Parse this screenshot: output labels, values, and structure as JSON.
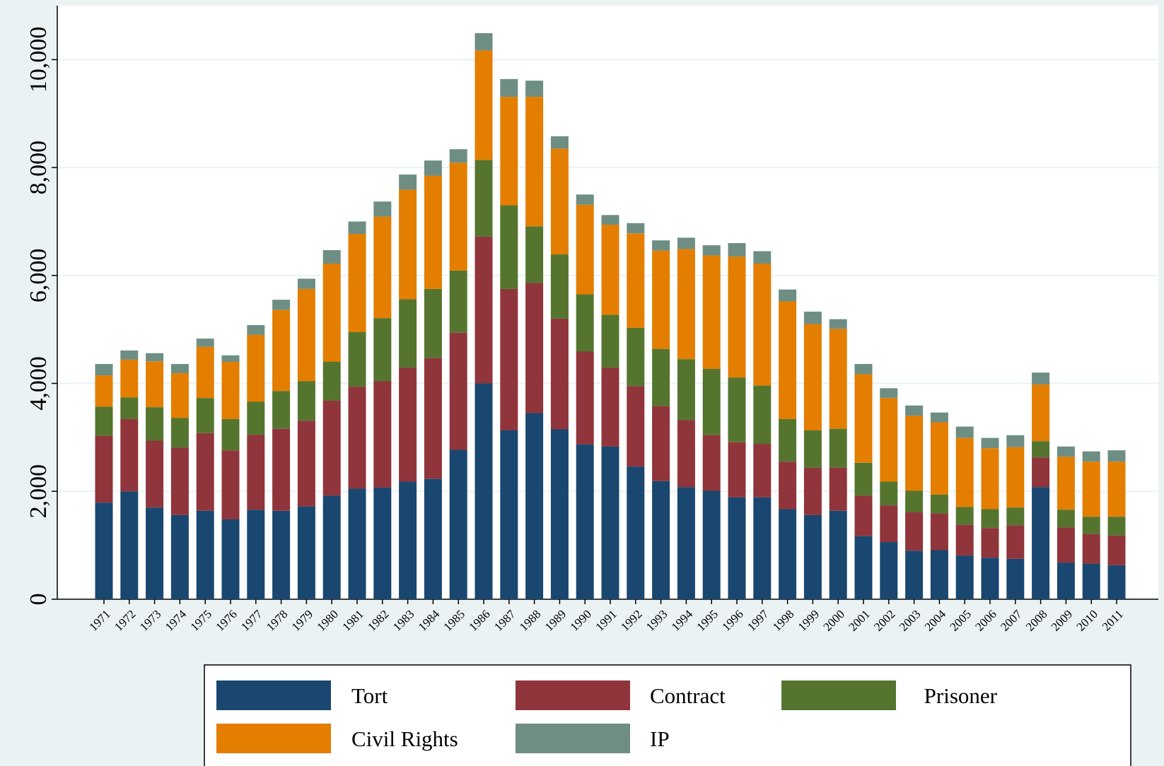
{
  "chart_data": {
    "type": "stacked_bar",
    "categories": [
      "1971",
      "1972",
      "1973",
      "1974",
      "1975",
      "1976",
      "1977",
      "1978",
      "1979",
      "1980",
      "1981",
      "1982",
      "1983",
      "1984",
      "1985",
      "1986",
      "1987",
      "1988",
      "1989",
      "1990",
      "1991",
      "1992",
      "1993",
      "1994",
      "1995",
      "1996",
      "1997",
      "1998",
      "1999",
      "2000",
      "2001",
      "2002",
      "2003",
      "2004",
      "2005",
      "2006",
      "2007",
      "2008",
      "2009",
      "2010",
      "2011"
    ],
    "series": [
      {
        "name": "Tort",
        "color": "#1a476f",
        "values": [
          1790,
          2000,
          1700,
          1560,
          1640,
          1480,
          1660,
          1640,
          1720,
          1920,
          2050,
          2070,
          2180,
          2230,
          2770,
          4000,
          3130,
          3450,
          3150,
          2870,
          2830,
          2460,
          2190,
          2080,
          2010,
          1890,
          1890,
          1670,
          1560,
          1640,
          1170,
          1060,
          900,
          910,
          810,
          770,
          750,
          2080,
          680,
          660,
          630
        ]
      },
      {
        "name": "Contract",
        "color": "#90353b",
        "values": [
          1240,
          1340,
          1240,
          1250,
          1440,
          1280,
          1390,
          1520,
          1590,
          1760,
          1890,
          1970,
          2110,
          2240,
          2170,
          2720,
          2620,
          2410,
          2050,
          1720,
          1460,
          1490,
          1390,
          1240,
          1030,
          1020,
          990,
          880,
          880,
          800,
          750,
          680,
          710,
          680,
          570,
          550,
          620,
          550,
          650,
          550,
          550
        ]
      },
      {
        "name": "Prisoner",
        "color": "#55752f",
        "values": [
          540,
          400,
          620,
          550,
          650,
          580,
          610,
          700,
          730,
          720,
          1010,
          1170,
          1270,
          1280,
          1150,
          1420,
          1550,
          1050,
          1190,
          1060,
          980,
          1080,
          1060,
          1130,
          1230,
          1200,
          1080,
          790,
          690,
          720,
          610,
          440,
          400,
          350,
          330,
          350,
          330,
          300,
          330,
          320,
          350
        ]
      },
      {
        "name": "Civil Rights",
        "color": "#e37e00",
        "values": [
          580,
          700,
          850,
          830,
          950,
          1060,
          1240,
          1500,
          1710,
          1820,
          1820,
          1880,
          2030,
          2100,
          2000,
          2030,
          2010,
          2400,
          1960,
          1660,
          1670,
          1750,
          1820,
          2040,
          2100,
          2240,
          2260,
          2180,
          1970,
          1850,
          1640,
          1550,
          1390,
          1340,
          1280,
          1130,
          1120,
          1050,
          980,
          1020,
          1020
        ]
      },
      {
        "name": "IP",
        "color": "#6e8e84",
        "values": [
          210,
          170,
          150,
          170,
          150,
          120,
          180,
          190,
          190,
          250,
          230,
          280,
          280,
          280,
          250,
          320,
          330,
          300,
          230,
          190,
          180,
          190,
          190,
          210,
          190,
          250,
          230,
          220,
          230,
          180,
          190,
          180,
          190,
          180,
          210,
          190,
          220,
          220,
          190,
          190,
          210
        ]
      }
    ],
    "ylim": [
      0,
      11000
    ],
    "yticks": [
      0,
      {
        "value": 2000,
        "label": "2,000"
      },
      {
        "value": 4000,
        "label": "4,000"
      },
      {
        "value": 6000,
        "label": "6,000"
      },
      {
        "value": 8000,
        "label": "8,000"
      },
      {
        "value": 10000,
        "label": "10,000"
      }
    ],
    "grid": true
  }
}
